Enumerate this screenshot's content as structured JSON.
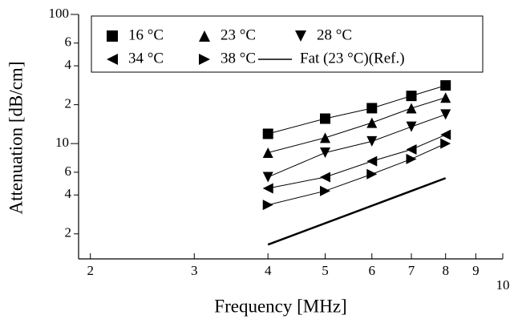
{
  "chart_data": {
    "type": "line",
    "x_label": "Frequency [MHz]",
    "y_label": "Attenuation [dB/cm]",
    "log_x": true,
    "log_y": true,
    "xlim": [
      1.91,
      10
    ],
    "ylim": [
      1.28,
      100
    ],
    "xticks": [
      2,
      3,
      4,
      5,
      6,
      7,
      8,
      9,
      10
    ],
    "yticks": [
      100,
      {
        "value": 60,
        "label": "6"
      },
      {
        "value": 40,
        "label": "4"
      },
      {
        "value": 20,
        "label": "2"
      },
      10,
      {
        "value": 6,
        "label": "6"
      },
      {
        "value": 4,
        "label": "4"
      },
      {
        "value": 2,
        "label": "2"
      }
    ],
    "legend": "top",
    "series": [
      {
        "name": "16 °C",
        "color": "#000000",
        "marker": "square",
        "line_width": 1,
        "x": [
          4,
          5,
          6,
          7,
          8
        ],
        "values": [
          11.9,
          15.6,
          18.8,
          23.4,
          28.2
        ]
      },
      {
        "name": "23 °C",
        "color": "#000000",
        "marker": "triangle-up",
        "line_width": 1,
        "x": [
          4,
          5,
          6,
          7,
          8
        ],
        "values": [
          8.5,
          11.1,
          14.5,
          18.8,
          22.7
        ]
      },
      {
        "name": "28 °C",
        "color": "#000000",
        "marker": "triangle-down",
        "line_width": 1,
        "x": [
          4,
          5,
          6,
          7,
          8
        ],
        "values": [
          5.5,
          8.5,
          10.4,
          13.5,
          16.8
        ]
      },
      {
        "name": "34 °C",
        "color": "#000000",
        "marker": "triangle-left",
        "line_width": 1,
        "x": [
          4,
          5,
          6,
          7,
          8
        ],
        "values": [
          4.5,
          5.5,
          7.3,
          9.0,
          11.7
        ]
      },
      {
        "name": "38 °C",
        "color": "#000000",
        "marker": "triangle-right",
        "line_width": 1,
        "x": [
          4,
          5,
          6,
          7,
          8
        ],
        "values": [
          3.35,
          4.3,
          5.8,
          7.6,
          10
        ]
      },
      {
        "name": "Fat (23 °C)(Ref.)",
        "color": "#000000",
        "marker": "none",
        "line_width": 2.5,
        "x": [
          4,
          8
        ],
        "values": [
          1.65,
          5.4
        ]
      }
    ]
  }
}
